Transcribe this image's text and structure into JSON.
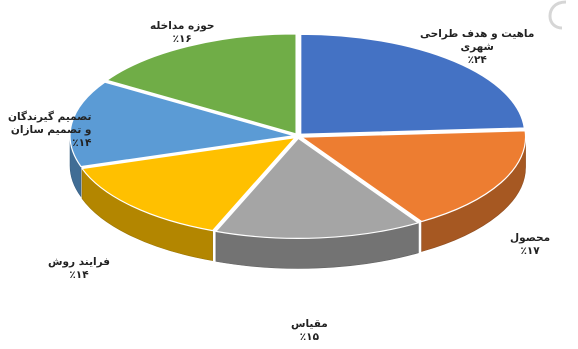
{
  "chart_data": {
    "type": "pie",
    "style": "3d-exploded",
    "slices": [
      {
        "label": [
          "ماهیت و هدف طراحی",
          "شهری"
        ],
        "pct_text": "٪۲۴",
        "value": 24,
        "color": "#4472C4"
      },
      {
        "label": [
          "محصول"
        ],
        "pct_text": "٪۱۷",
        "value": 17,
        "color": "#ED7D31"
      },
      {
        "label": [
          "مقیاس"
        ],
        "pct_text": "٪۱۵",
        "value": 15,
        "color": "#A5A5A5"
      },
      {
        "label": [
          "فرایند روش"
        ],
        "pct_text": "٪۱۴",
        "value": 14,
        "color": "#FFC000"
      },
      {
        "label": [
          "تصمیم گیرندگان",
          "و تصمیم سازان"
        ],
        "pct_text": "٪۱۴",
        "value": 14,
        "color": "#5B9BD5"
      },
      {
        "label": [
          "حوزه مداخله"
        ],
        "pct_text": "٪۱۶",
        "value": 16,
        "color": "#70AD47"
      }
    ]
  }
}
